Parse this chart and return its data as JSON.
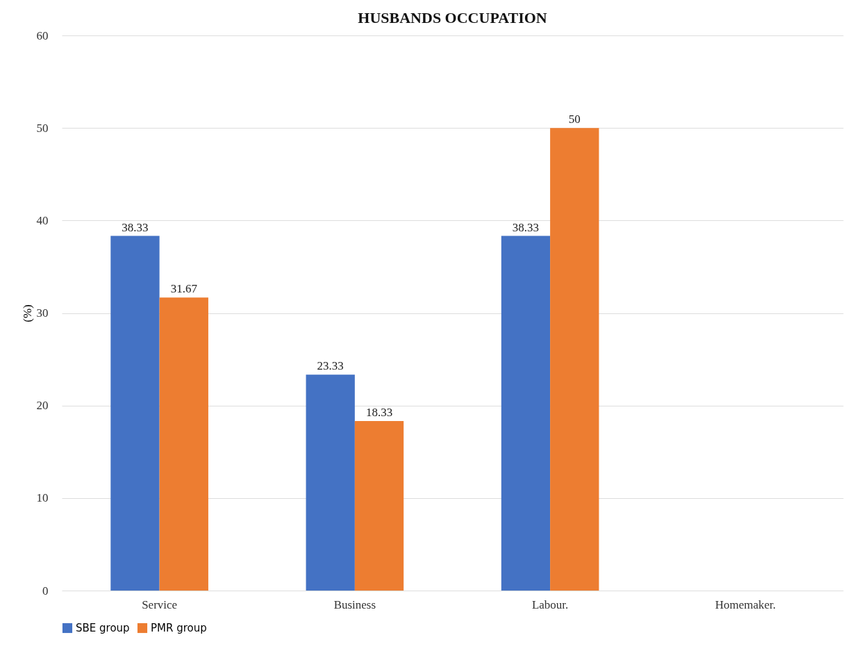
{
  "chart_data": {
    "type": "bar",
    "title": "HUSBANDS OCCUPATION",
    "ylabel": "(%)",
    "categories": [
      "Service",
      "Business",
      "Labour.",
      "Homemaker."
    ],
    "series": [
      {
        "name": "SBE group",
        "color": "#4472c4",
        "values": [
          38.33,
          23.33,
          38.33,
          null
        ]
      },
      {
        "name": "PMR group",
        "color": "#ed7d31",
        "values": [
          31.67,
          18.33,
          50,
          null
        ]
      }
    ],
    "ylim": [
      0,
      60
    ],
    "yticks": [
      0,
      10,
      20,
      30,
      40,
      50,
      60
    ],
    "grid": "y",
    "legend": "bottom",
    "data_labels": true
  }
}
